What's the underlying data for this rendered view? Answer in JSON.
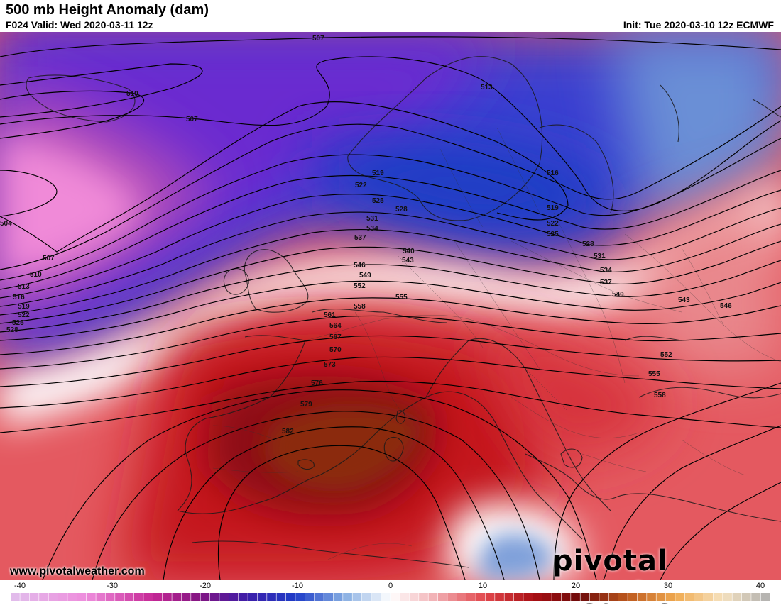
{
  "header": {
    "title": "500 mb Height Anomaly (dam)",
    "valid": "F024 Valid: Wed 2020-03-11 12z",
    "init": "Init: Tue 2020-03-10 12z ECMWF"
  },
  "footer": {
    "website": "www.pivotalweather.com",
    "brand": "pivotal weather"
  },
  "colorbar": {
    "ticks": [
      "-40",
      "-30",
      "-20",
      "-10",
      "0",
      "10",
      "20",
      "30",
      "40"
    ]
  },
  "contour_labels": {
    "l507a": "507",
    "l510a": "510",
    "l507b": "507",
    "l513": "513",
    "l516": "516",
    "l519a": "519",
    "l519b": "519",
    "l522a": "522",
    "l522b": "522",
    "l525a": "525",
    "l525b": "525",
    "l528a": "528",
    "l528b": "528",
    "l531a": "531",
    "l531b": "531",
    "l534a": "534",
    "l534b": "534",
    "l537a": "537",
    "l537b": "537",
    "l540a": "540",
    "l540b": "540",
    "l543a": "543",
    "l543b": "543",
    "l546a": "546",
    "l546b": "546",
    "l549": "549",
    "l552a": "552",
    "l552b": "552",
    "l555a": "555",
    "l555b": "555",
    "l558a": "558",
    "l558b": "558",
    "l561": "561",
    "l564": "564",
    "l567": "567",
    "l570": "570",
    "l573": "573",
    "l576": "576",
    "l579": "579",
    "l582": "582",
    "w504": "504",
    "w507": "507",
    "w510": "510",
    "w513": "513",
    "w516": "516",
    "w519": "519",
    "w522": "522",
    "w525": "525",
    "w528": "528"
  },
  "colors": {
    "strong_positive": "#8b2a0e",
    "positive": "#c4161c",
    "neutral": "#ffffff",
    "negative": "#2b3fc7",
    "strong_negative": "#e98ad6"
  }
}
